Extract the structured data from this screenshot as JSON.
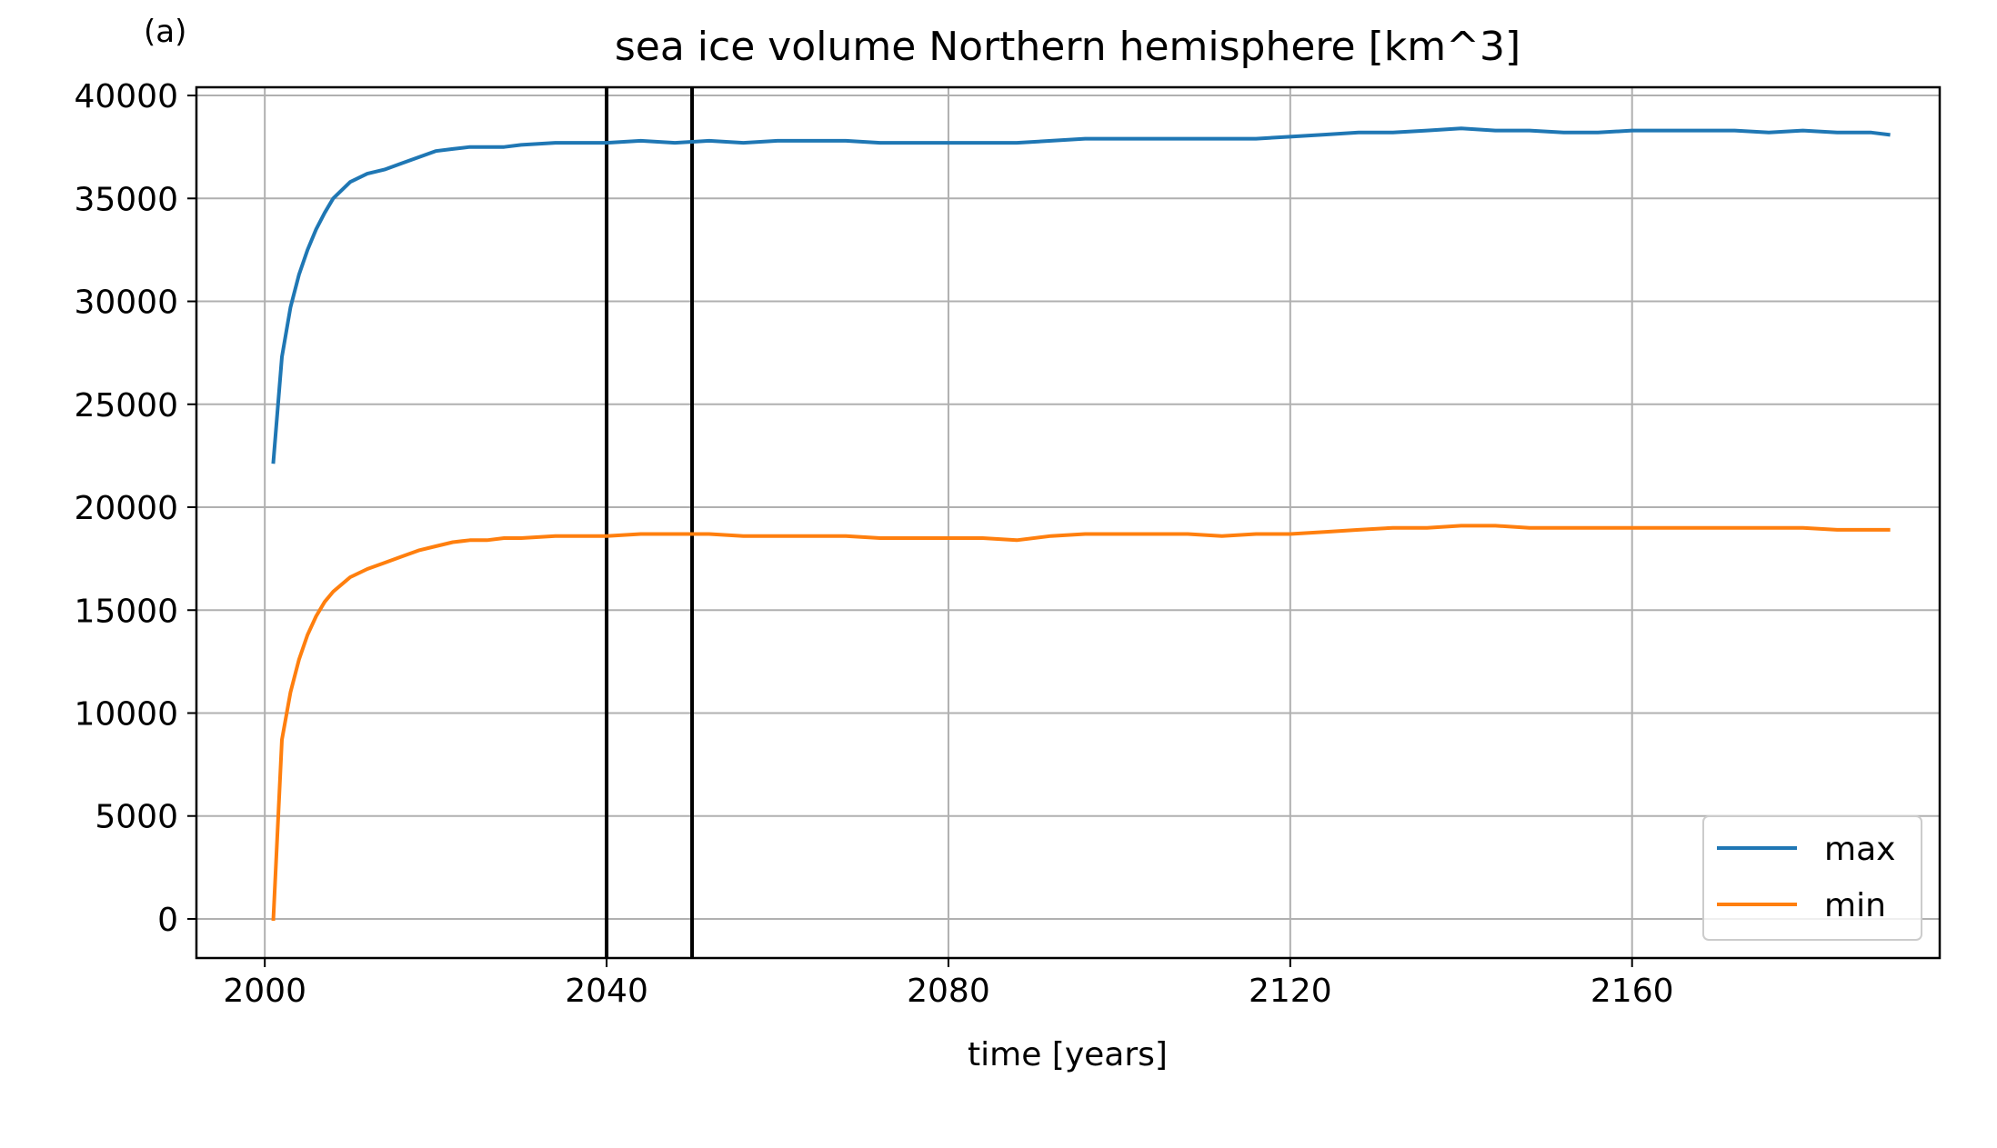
{
  "panel_label": "(a)",
  "colors": {
    "max": "#1f77b4",
    "min": "#ff7f0e",
    "grid": "#b0b0b0",
    "vline": "#000000"
  },
  "chart_data": {
    "type": "line",
    "title": "sea ice volume Northern hemisphere [km^3]",
    "xlabel": "time [years]",
    "ylabel": "",
    "xlim": [
      1992,
      2196
    ],
    "ylim": [
      -1900,
      40400
    ],
    "xticks": [
      2000,
      2040,
      2080,
      2120,
      2160
    ],
    "yticks": [
      0,
      5000,
      10000,
      15000,
      20000,
      25000,
      30000,
      35000,
      40000
    ],
    "grid": true,
    "legend": "lower-right",
    "vertical_lines": [
      2040,
      2050
    ],
    "series": [
      {
        "name": "max",
        "color": "#1f77b4",
        "x": [
          2001,
          2002,
          2003,
          2004,
          2005,
          2006,
          2007,
          2008,
          2010,
          2012,
          2014,
          2016,
          2018,
          2020,
          2022,
          2024,
          2026,
          2028,
          2030,
          2034,
          2038,
          2040,
          2044,
          2048,
          2052,
          2056,
          2060,
          2064,
          2068,
          2072,
          2076,
          2080,
          2084,
          2088,
          2092,
          2096,
          2100,
          2104,
          2108,
          2112,
          2116,
          2120,
          2124,
          2128,
          2132,
          2136,
          2140,
          2144,
          2148,
          2152,
          2156,
          2160,
          2164,
          2168,
          2172,
          2176,
          2180,
          2184,
          2188,
          2190
        ],
        "values": [
          22200,
          27300,
          29700,
          31300,
          32500,
          33500,
          34300,
          35000,
          35800,
          36200,
          36400,
          36700,
          37000,
          37300,
          37400,
          37500,
          37500,
          37500,
          37600,
          37700,
          37700,
          37700,
          37800,
          37700,
          37800,
          37700,
          37800,
          37800,
          37800,
          37700,
          37700,
          37700,
          37700,
          37700,
          37800,
          37900,
          37900,
          37900,
          37900,
          37900,
          37900,
          38000,
          38100,
          38200,
          38200,
          38300,
          38400,
          38300,
          38300,
          38200,
          38200,
          38300,
          38300,
          38300,
          38300,
          38200,
          38300,
          38200,
          38200,
          38100
        ]
      },
      {
        "name": "min",
        "color": "#ff7f0e",
        "x": [
          2001,
          2002,
          2003,
          2004,
          2005,
          2006,
          2007,
          2008,
          2010,
          2012,
          2014,
          2016,
          2018,
          2020,
          2022,
          2024,
          2026,
          2028,
          2030,
          2034,
          2038,
          2040,
          2044,
          2048,
          2052,
          2056,
          2060,
          2064,
          2068,
          2072,
          2076,
          2080,
          2084,
          2088,
          2092,
          2096,
          2100,
          2104,
          2108,
          2112,
          2116,
          2120,
          2124,
          2128,
          2132,
          2136,
          2140,
          2144,
          2148,
          2152,
          2156,
          2160,
          2164,
          2168,
          2172,
          2176,
          2180,
          2184,
          2188,
          2190
        ],
        "values": [
          0,
          8700,
          11000,
          12600,
          13800,
          14700,
          15400,
          15900,
          16600,
          17000,
          17300,
          17600,
          17900,
          18100,
          18300,
          18400,
          18400,
          18500,
          18500,
          18600,
          18600,
          18600,
          18700,
          18700,
          18700,
          18600,
          18600,
          18600,
          18600,
          18500,
          18500,
          18500,
          18500,
          18400,
          18600,
          18700,
          18700,
          18700,
          18700,
          18600,
          18700,
          18700,
          18800,
          18900,
          19000,
          19000,
          19100,
          19100,
          19000,
          19000,
          19000,
          19000,
          19000,
          19000,
          19000,
          19000,
          19000,
          18900,
          18900,
          18900
        ]
      }
    ]
  }
}
